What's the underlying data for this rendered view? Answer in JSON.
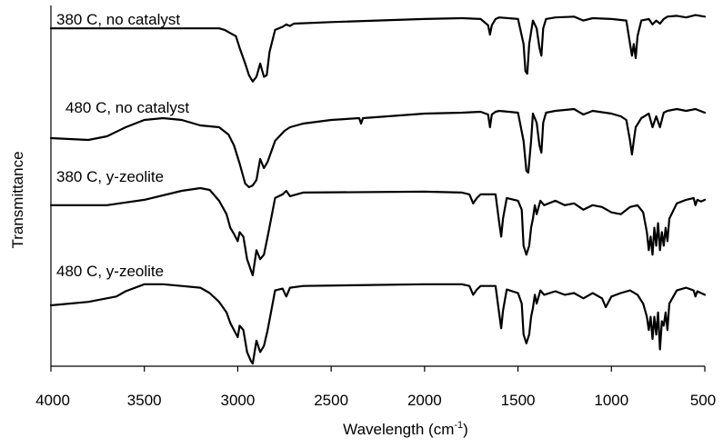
{
  "chart_data": {
    "type": "line",
    "xlabel": "Wavelength (cm",
    "xlabel_sup": "-1",
    "xlabel_close": ")",
    "ylabel": "Transmittance",
    "xlim": [
      4000,
      500
    ],
    "x_reversed": true,
    "x_ticks": [
      4000,
      3500,
      3000,
      2500,
      2000,
      1500,
      1000,
      500
    ],
    "y_ticks_shown": false,
    "grid": false,
    "series_units": "relative transmittance (0 = strongest absorption, 1 = highest baseline within each trace)",
    "series": [
      {
        "name": "380 C, no catalyst",
        "x": [
          4000,
          3100,
          3070,
          3040,
          3010,
          2990,
          2960,
          2940,
          2920,
          2900,
          2880,
          2860,
          2845,
          2830,
          2800,
          2760,
          2740,
          2720,
          2700,
          2500,
          2000,
          1800,
          1700,
          1660,
          1650,
          1640,
          1620,
          1600,
          1500,
          1470,
          1460,
          1450,
          1440,
          1420,
          1400,
          1385,
          1375,
          1365,
          1350,
          1300,
          1200,
          1150,
          1100,
          1000,
          920,
          900,
          890,
          880,
          870,
          860,
          840,
          800,
          780,
          760,
          740,
          720,
          700,
          650,
          600,
          550,
          500
        ],
        "y": [
          0.8,
          0.8,
          0.78,
          0.74,
          0.7,
          0.55,
          0.35,
          0.2,
          0.12,
          0.18,
          0.35,
          0.18,
          0.2,
          0.5,
          0.78,
          0.82,
          0.85,
          0.83,
          0.86,
          0.88,
          0.92,
          0.93,
          0.92,
          0.84,
          0.72,
          0.84,
          0.92,
          0.94,
          0.92,
          0.6,
          0.25,
          0.22,
          0.6,
          0.9,
          0.8,
          0.55,
          0.45,
          0.8,
          0.92,
          0.94,
          0.95,
          0.9,
          0.93,
          0.92,
          0.9,
          0.6,
          0.45,
          0.6,
          0.42,
          0.7,
          0.9,
          0.92,
          0.85,
          0.9,
          0.86,
          0.92,
          0.95,
          0.96,
          0.94,
          0.97,
          0.95
        ]
      },
      {
        "name": "480 C, no catalyst",
        "x": [
          4000,
          3800,
          3700,
          3600,
          3500,
          3400,
          3300,
          3200,
          3100,
          3050,
          3020,
          2990,
          2960,
          2940,
          2920,
          2900,
          2880,
          2860,
          2840,
          2800,
          2750,
          2720,
          2650,
          2500,
          2350,
          2340,
          2330,
          2000,
          1800,
          1700,
          1660,
          1650,
          1640,
          1620,
          1600,
          1500,
          1470,
          1455,
          1445,
          1430,
          1420,
          1400,
          1385,
          1375,
          1365,
          1350,
          1300,
          1200,
          1150,
          1100,
          1000,
          950,
          920,
          900,
          890,
          880,
          870,
          840,
          800,
          780,
          760,
          740,
          720,
          700,
          650,
          600,
          550,
          500
        ],
        "y": [
          0.58,
          0.56,
          0.6,
          0.7,
          0.78,
          0.8,
          0.78,
          0.72,
          0.7,
          0.62,
          0.5,
          0.3,
          0.08,
          0.04,
          0.06,
          0.12,
          0.35,
          0.25,
          0.32,
          0.55,
          0.66,
          0.7,
          0.74,
          0.78,
          0.8,
          0.74,
          0.8,
          0.85,
          0.86,
          0.87,
          0.84,
          0.7,
          0.84,
          0.87,
          0.88,
          0.86,
          0.55,
          0.22,
          0.2,
          0.55,
          0.85,
          0.75,
          0.5,
          0.42,
          0.75,
          0.86,
          0.88,
          0.9,
          0.84,
          0.88,
          0.85,
          0.82,
          0.78,
          0.55,
          0.4,
          0.55,
          0.7,
          0.8,
          0.85,
          0.7,
          0.82,
          0.7,
          0.86,
          0.88,
          0.9,
          0.88,
          0.9,
          0.86
        ]
      },
      {
        "name": "380 C, y-zeolite",
        "x": [
          4000,
          3700,
          3500,
          3300,
          3200,
          3150,
          3100,
          3060,
          3040,
          3020,
          3000,
          2990,
          2970,
          2950,
          2930,
          2920,
          2900,
          2880,
          2860,
          2840,
          2800,
          2760,
          2740,
          2720,
          2650,
          2000,
          1800,
          1760,
          1740,
          1720,
          1700,
          1620,
          1600,
          1590,
          1580,
          1560,
          1500,
          1480,
          1470,
          1455,
          1440,
          1430,
          1420,
          1410,
          1400,
          1380,
          1360,
          1300,
          1250,
          1200,
          1150,
          1100,
          1050,
          1000,
          950,
          900,
          860,
          830,
          810,
          800,
          790,
          780,
          770,
          760,
          750,
          740,
          730,
          720,
          710,
          700,
          690,
          650,
          600,
          560,
          550,
          540,
          520,
          500
        ],
        "y": [
          0.8,
          0.8,
          0.86,
          0.96,
          0.99,
          0.97,
          0.85,
          0.7,
          0.55,
          0.48,
          0.4,
          0.5,
          0.45,
          0.2,
          0.08,
          0.02,
          0.3,
          0.2,
          0.25,
          0.45,
          0.88,
          0.92,
          0.96,
          0.9,
          0.94,
          0.95,
          0.94,
          0.92,
          0.82,
          0.88,
          0.92,
          0.92,
          0.6,
          0.45,
          0.65,
          0.88,
          0.85,
          0.75,
          0.35,
          0.25,
          0.35,
          0.55,
          0.65,
          0.8,
          0.7,
          0.85,
          0.8,
          0.85,
          0.8,
          0.82,
          0.75,
          0.8,
          0.78,
          0.72,
          0.7,
          0.78,
          0.8,
          0.72,
          0.5,
          0.3,
          0.45,
          0.25,
          0.55,
          0.35,
          0.6,
          0.3,
          0.5,
          0.35,
          0.55,
          0.4,
          0.65,
          0.82,
          0.86,
          0.88,
          0.8,
          0.86,
          0.84,
          0.86
        ]
      },
      {
        "name": "480 C, y-zeolite",
        "x": [
          4000,
          3800,
          3650,
          3600,
          3500,
          3400,
          3300,
          3200,
          3150,
          3100,
          3060,
          3040,
          3020,
          3000,
          2990,
          2970,
          2950,
          2930,
          2920,
          2900,
          2880,
          2860,
          2840,
          2800,
          2760,
          2740,
          2720,
          2650,
          2000,
          1800,
          1760,
          1740,
          1720,
          1700,
          1620,
          1600,
          1590,
          1580,
          1560,
          1500,
          1480,
          1470,
          1455,
          1440,
          1430,
          1420,
          1410,
          1400,
          1380,
          1360,
          1300,
          1250,
          1200,
          1150,
          1100,
          1050,
          1030,
          1000,
          950,
          900,
          860,
          830,
          810,
          800,
          790,
          780,
          770,
          760,
          750,
          740,
          730,
          720,
          710,
          700,
          690,
          650,
          600,
          560,
          550,
          540,
          520,
          500
        ],
        "y": [
          0.68,
          0.72,
          0.78,
          0.84,
          0.92,
          0.92,
          0.9,
          0.88,
          0.82,
          0.72,
          0.6,
          0.48,
          0.4,
          0.32,
          0.45,
          0.4,
          0.15,
          0.05,
          0.02,
          0.28,
          0.15,
          0.22,
          0.4,
          0.85,
          0.87,
          0.78,
          0.88,
          0.9,
          0.92,
          0.92,
          0.9,
          0.8,
          0.86,
          0.9,
          0.9,
          0.58,
          0.42,
          0.62,
          0.86,
          0.82,
          0.7,
          0.35,
          0.25,
          0.35,
          0.55,
          0.65,
          0.8,
          0.7,
          0.85,
          0.8,
          0.84,
          0.8,
          0.82,
          0.76,
          0.82,
          0.76,
          0.66,
          0.78,
          0.82,
          0.85,
          0.8,
          0.7,
          0.55,
          0.4,
          0.55,
          0.3,
          0.55,
          0.35,
          0.6,
          0.18,
          0.5,
          0.45,
          0.6,
          0.4,
          0.7,
          0.85,
          0.88,
          0.85,
          0.78,
          0.84,
          0.82,
          0.8
        ]
      }
    ]
  }
}
